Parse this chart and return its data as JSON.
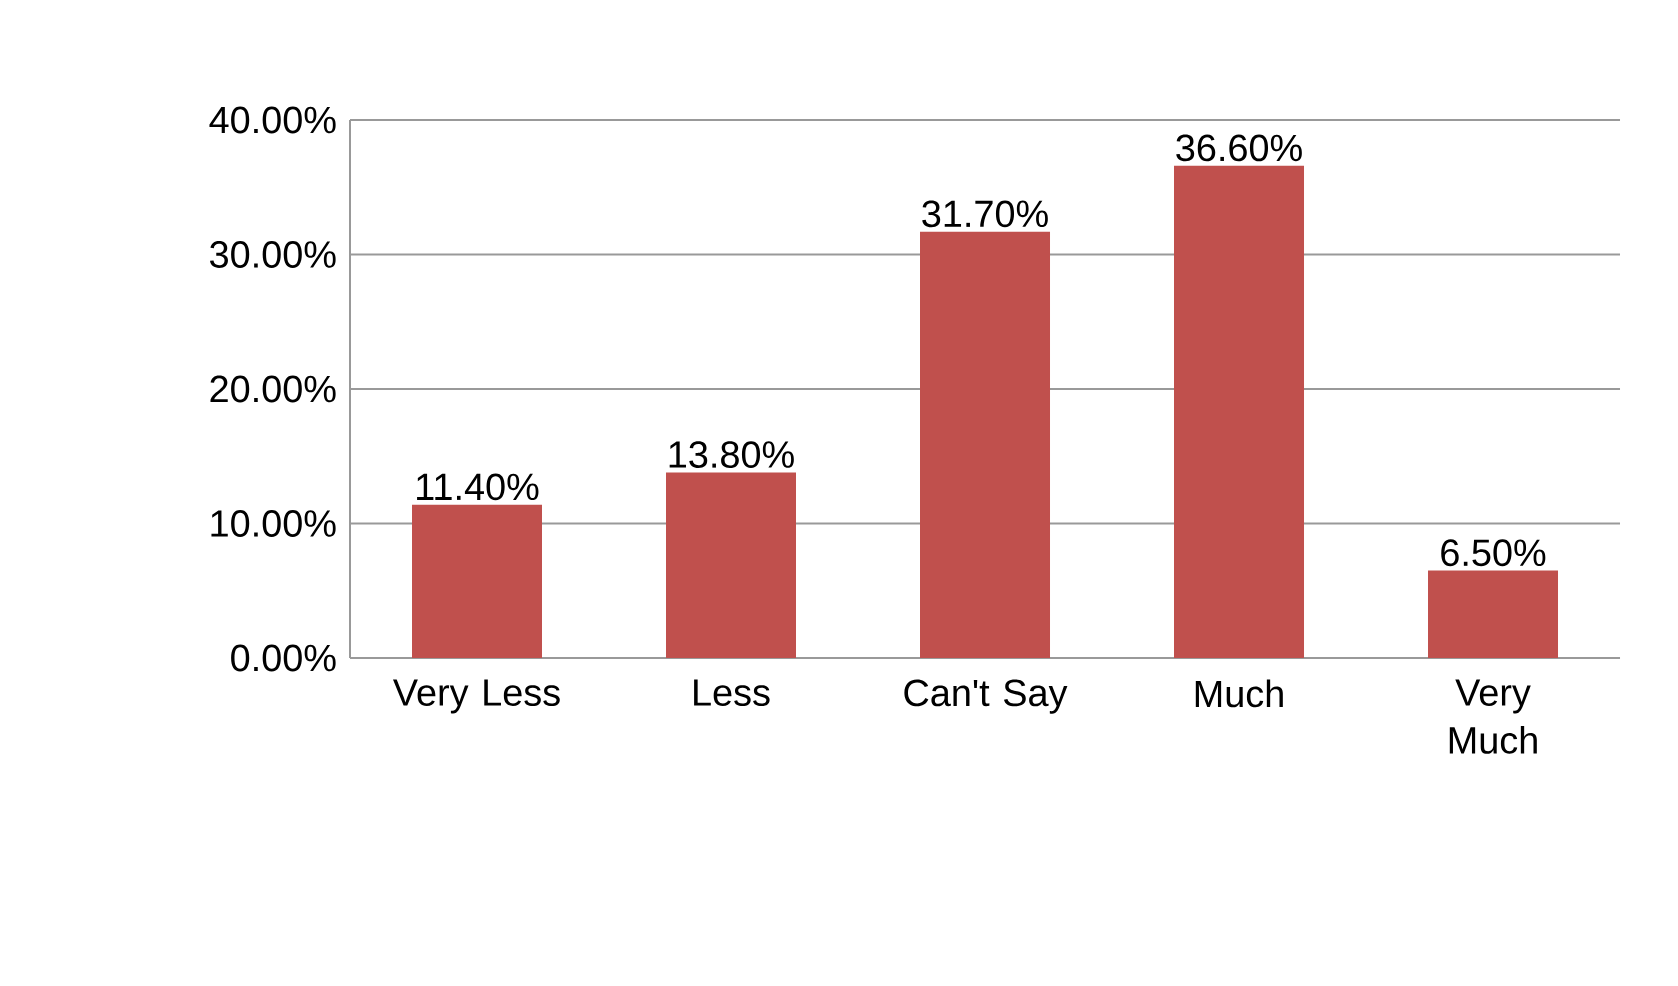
{
  "chart_data": {
    "type": "bar",
    "categories": [
      "Very Less",
      "Less",
      "Can't Say",
      "Much",
      "Very Much"
    ],
    "values": [
      11.4,
      13.8,
      31.7,
      36.6,
      6.5
    ],
    "color": "#c0504d",
    "value_labels": [
      "11.40%",
      "13.80%",
      "31.70%",
      "36.60%",
      "6.50%"
    ],
    "ylim": [
      0,
      40
    ],
    "yticks": [
      {
        "value": 0,
        "label": "0.00%"
      },
      {
        "value": 10,
        "label": "10.00%"
      },
      {
        "value": 20,
        "label": "20.00%"
      },
      {
        "value": 30,
        "label": "30.00%"
      },
      {
        "value": 40,
        "label": "40.00%"
      }
    ],
    "grid": "y"
  }
}
